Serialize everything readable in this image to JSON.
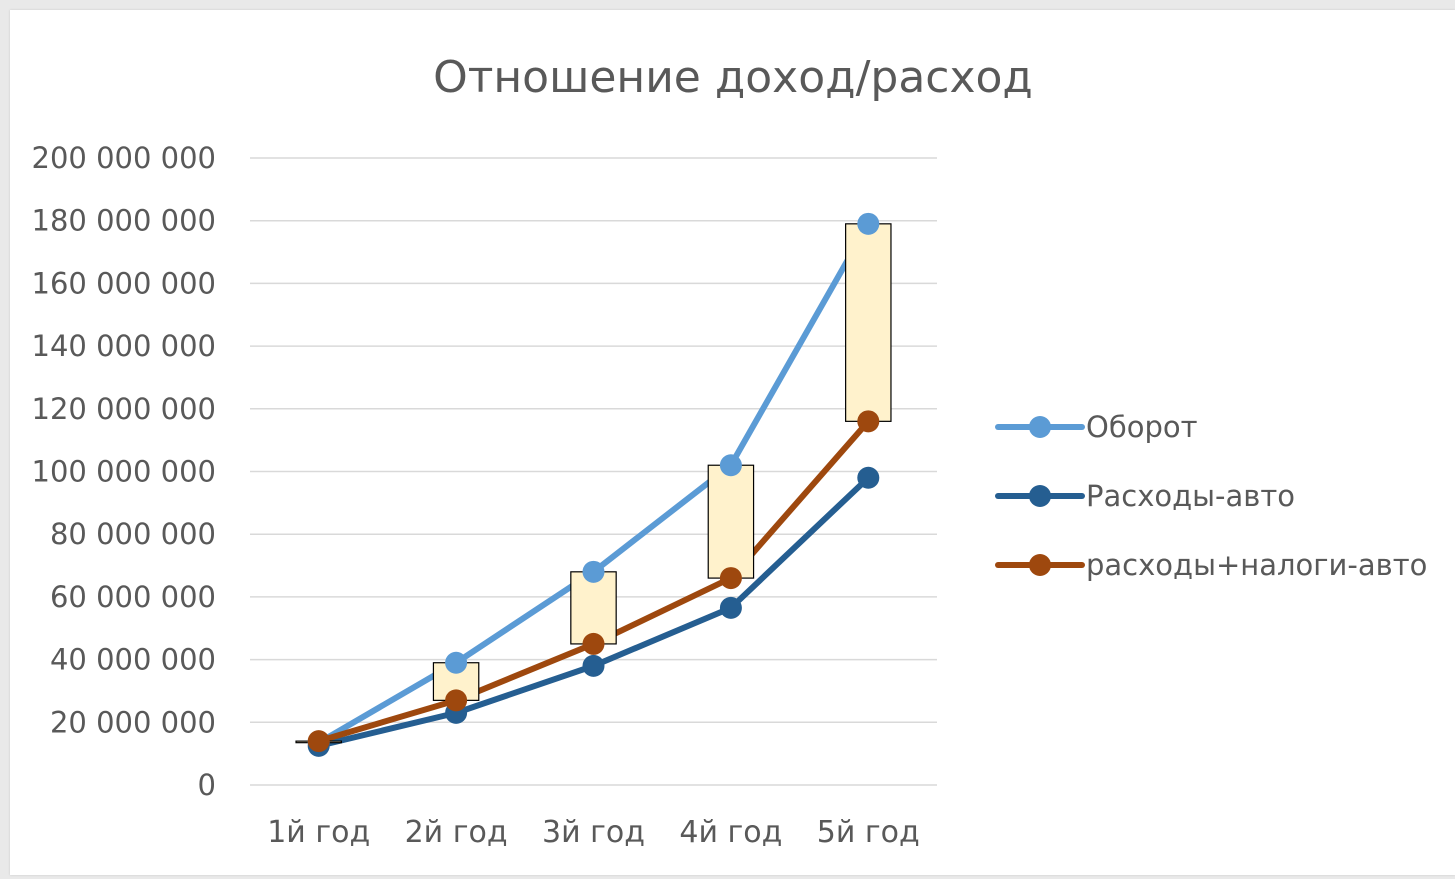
{
  "chart_data": {
    "type": "line",
    "title": "Отношение доход/расход",
    "categories": [
      "1й год",
      "2й год",
      "3й год",
      "4й год",
      "5й год"
    ],
    "ylim": [
      0,
      200000000
    ],
    "yticks": [
      0,
      20000000,
      40000000,
      60000000,
      80000000,
      100000000,
      120000000,
      140000000,
      160000000,
      180000000,
      200000000
    ],
    "ytick_labels": [
      "0",
      "20 000 000",
      "40 000 000",
      "60 000 000",
      "80 000 000",
      "100 000 000",
      "120 000 000",
      "140 000 000",
      "160 000 000",
      "180 000 000",
      "200 000 000"
    ],
    "grid": true,
    "legend_position": "right",
    "series": [
      {
        "name": "Оборот",
        "color": "#5b9bd5",
        "values": [
          13500000,
          39000000,
          68000000,
          102000000,
          179000000
        ]
      },
      {
        "name": "Расходы-авто",
        "color": "#255e91",
        "values": [
          12500000,
          23000000,
          38000000,
          56500000,
          98000000
        ]
      },
      {
        "name": "расходы+налоги-авто",
        "color": "#9e480e",
        "values": [
          14000000,
          27000000,
          45000000,
          66000000,
          116000000
        ]
      }
    ],
    "up_bars": {
      "fill": "#fff2cc",
      "stroke": "#000000",
      "between": [
        "Оборот",
        "расходы+налоги-авто"
      ]
    }
  }
}
